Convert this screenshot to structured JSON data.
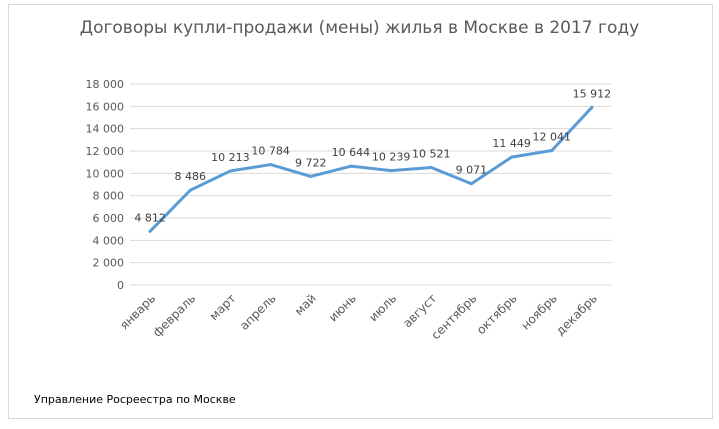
{
  "chart_data": {
    "type": "line",
    "title": "Договоры купли-продажи (мены) жилья в Москве в  2017 году",
    "categories": [
      "январь",
      "февраль",
      "март",
      "апрель",
      "май",
      "июнь",
      "июль",
      "август",
      "сентябрь",
      "октябрь",
      "ноябрь",
      "декабрь"
    ],
    "values": [
      4812,
      8486,
      10213,
      10784,
      9722,
      10644,
      10239,
      10521,
      9071,
      11449,
      12041,
      15912
    ],
    "data_labels": [
      "4 812",
      "8 486",
      "10 213",
      "10 784",
      "9 722",
      "10 644",
      "10 239",
      "10 521",
      "9 071",
      "11 449",
      "12 041",
      "15 912"
    ],
    "y_ticks": [
      0,
      2000,
      4000,
      6000,
      8000,
      10000,
      12000,
      14000,
      16000,
      18000
    ],
    "y_tick_labels": [
      "0",
      "2 000",
      "4 000",
      "6 000",
      "8 000",
      "10 000",
      "12 000",
      "14 000",
      "16 000",
      "18 000"
    ],
    "ylim": [
      0,
      18000
    ],
    "grid": true,
    "line_color": "#5b9bd5",
    "grid_color": "#d9d9d9"
  },
  "source": "Управление Росреестра по Москве"
}
